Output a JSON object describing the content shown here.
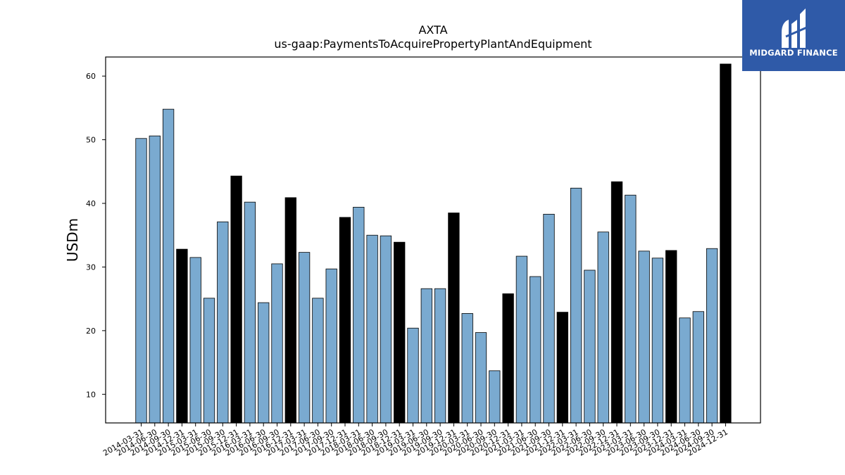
{
  "chart_data": {
    "type": "bar",
    "title": "AXTA",
    "subtitle": "us-gaap:PaymentsToAcquirePropertyPlantAndEquipment",
    "ylabel": "USDm",
    "xlabel": "",
    "ylim": [
      5.5,
      63
    ],
    "yticks": [
      10,
      20,
      30,
      40,
      50,
      60
    ],
    "categories": [
      "2014-03-31",
      "2014-06-30",
      "2014-09-30",
      "2014-12-31",
      "2015-03-31",
      "2015-06-30",
      "2015-09-30",
      "2015-12-31",
      "2016-03-31",
      "2016-06-30",
      "2016-09-30",
      "2016-12-31",
      "2017-03-31",
      "2017-06-30",
      "2017-09-30",
      "2017-12-31",
      "2018-03-31",
      "2018-06-30",
      "2018-09-30",
      "2018-12-31",
      "2019-03-31",
      "2019-06-30",
      "2019-09-30",
      "2019-12-31",
      "2020-03-31",
      "2020-06-30",
      "2020-09-30",
      "2020-12-31",
      "2021-03-31",
      "2021-06-30",
      "2021-09-30",
      "2021-12-31",
      "2022-03-31",
      "2022-06-30",
      "2022-09-30",
      "2022-12-31",
      "2023-03-31",
      "2023-06-30",
      "2023-09-30",
      "2023-12-31",
      "2024-03-31",
      "2024-06-30",
      "2024-09-30",
      "2024-12-31"
    ],
    "values": [
      50.2,
      50.6,
      54.8,
      32.8,
      31.5,
      25.1,
      37.1,
      44.3,
      40.2,
      24.4,
      30.5,
      40.9,
      32.3,
      25.1,
      29.7,
      37.8,
      39.4,
      35.0,
      34.9,
      33.9,
      20.4,
      26.6,
      26.6,
      38.5,
      22.7,
      19.7,
      13.7,
      25.8,
      31.7,
      28.5,
      38.3,
      22.9,
      42.4,
      29.5,
      35.5,
      43.4,
      41.3,
      32.5,
      31.4,
      32.6,
      22.0,
      23.0,
      32.9,
      61.9
    ],
    "colors": {
      "quarter": "#7aaad0",
      "year_end": "#000000",
      "edge": "#000000"
    },
    "grid": false
  },
  "logo": {
    "text": "MIDGARD FINANCE",
    "background": "#2f5aa8"
  }
}
